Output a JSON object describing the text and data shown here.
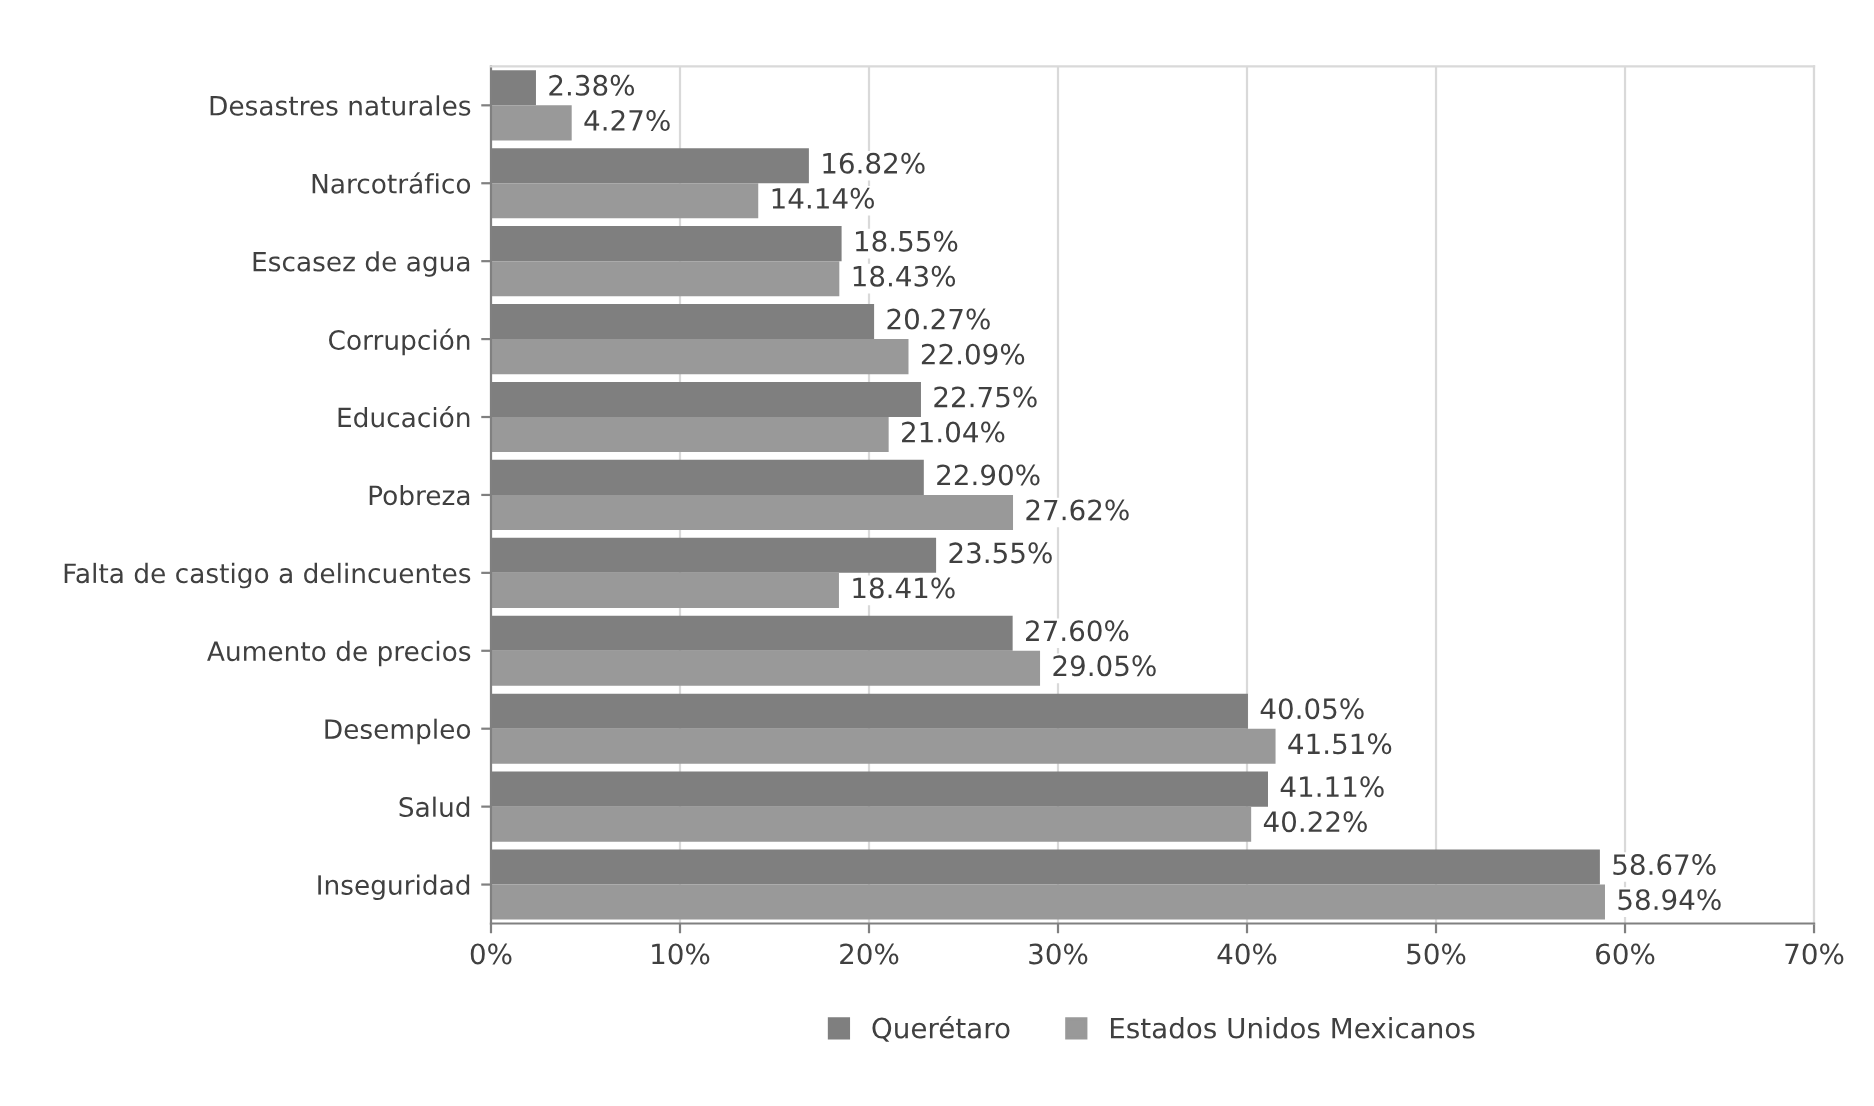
{
  "chart_data": {
    "type": "bar",
    "orientation": "horizontal",
    "categories": [
      "Desastres naturales",
      "Narcotráfico",
      "Escasez de agua",
      "Corrupción",
      "Educación",
      "Pobreza",
      "Falta de castigo a delincuentes",
      "Aumento de precios",
      "Desempleo",
      "Salud",
      "Inseguridad"
    ],
    "series": [
      {
        "name": "Querétaro",
        "color": "#7f7f7f",
        "values": [
          2.38,
          16.82,
          18.55,
          20.27,
          22.75,
          22.9,
          23.55,
          27.6,
          40.05,
          41.11,
          58.67
        ],
        "value_labels": [
          "2.38%",
          "16.82%",
          "18.55%",
          "20.27%",
          "22.75%",
          "22.90%",
          "23.55%",
          "27.60%",
          "40.05%",
          "41.11%",
          "58.67%"
        ]
      },
      {
        "name": "Estados Unidos Mexicanos",
        "color": "#999999",
        "values": [
          4.27,
          14.14,
          18.43,
          22.09,
          21.04,
          27.62,
          18.41,
          29.05,
          41.51,
          40.22,
          58.94
        ],
        "value_labels": [
          "4.27%",
          "14.14%",
          "18.43%",
          "22.09%",
          "21.04%",
          "27.62%",
          "18.41%",
          "29.05%",
          "41.51%",
          "40.22%",
          "58.94%"
        ]
      }
    ],
    "xlim": [
      0,
      70
    ],
    "xticks": [
      {
        "value": 0,
        "label": "0%"
      },
      {
        "value": 10,
        "label": "10%"
      },
      {
        "value": 20,
        "label": "20%"
      },
      {
        "value": 30,
        "label": "30%"
      },
      {
        "value": 40,
        "label": "40%"
      },
      {
        "value": 50,
        "label": "50%"
      },
      {
        "value": 60,
        "label": "60%"
      },
      {
        "value": 70,
        "label": "70%"
      }
    ],
    "grid": "x",
    "legend": "bottom"
  }
}
